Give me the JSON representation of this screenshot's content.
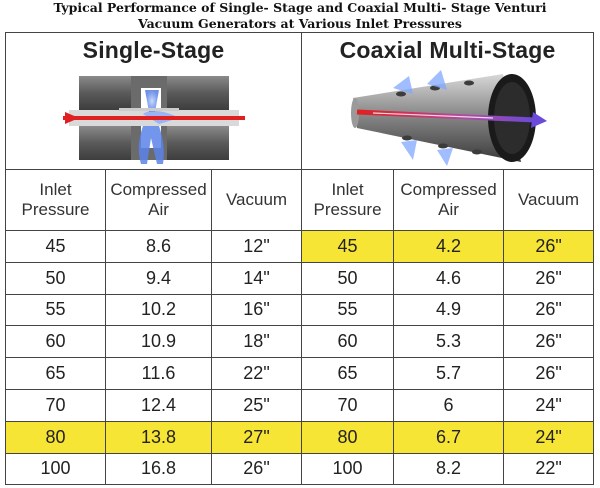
{
  "title": {
    "line1": "Typical Performance of Single- Stage and Coaxial Multi- Stage Venturi",
    "line2": "Vacuum Generators at Various Inlet Pressures"
  },
  "sections": {
    "single": {
      "title": "Single-Stage",
      "icon": "single-stage-venturi-diagram"
    },
    "coaxial": {
      "title": "Coaxial Multi-Stage",
      "icon": "coaxial-multistage-venturi-diagram"
    }
  },
  "columns": {
    "inlet_line1": "Inlet",
    "inlet_line2": "Pressure",
    "air_line1": "Compressed",
    "air_line2": "Air",
    "vacuum": "Vacuum"
  },
  "highlight_color": "#f7e535",
  "rows": [
    {
      "single": {
        "inlet": "45",
        "air": "8.6",
        "vacuum": "12\""
      },
      "coaxial": {
        "inlet": "45",
        "air": "4.2",
        "vacuum": "26\""
      },
      "single_highlight": false,
      "coaxial_highlight": true
    },
    {
      "single": {
        "inlet": "50",
        "air": "9.4",
        "vacuum": "14\""
      },
      "coaxial": {
        "inlet": "50",
        "air": "4.6",
        "vacuum": "26\""
      },
      "single_highlight": false,
      "coaxial_highlight": false
    },
    {
      "single": {
        "inlet": "55",
        "air": "10.2",
        "vacuum": "16\""
      },
      "coaxial": {
        "inlet": "55",
        "air": "4.9",
        "vacuum": "26\""
      },
      "single_highlight": false,
      "coaxial_highlight": false
    },
    {
      "single": {
        "inlet": "60",
        "air": "10.9",
        "vacuum": "18\""
      },
      "coaxial": {
        "inlet": "60",
        "air": "5.3",
        "vacuum": "26\""
      },
      "single_highlight": false,
      "coaxial_highlight": false
    },
    {
      "single": {
        "inlet": "65",
        "air": "11.6",
        "vacuum": "22\""
      },
      "coaxial": {
        "inlet": "65",
        "air": "5.7",
        "vacuum": "26\""
      },
      "single_highlight": false,
      "coaxial_highlight": false
    },
    {
      "single": {
        "inlet": "70",
        "air": "12.4",
        "vacuum": "25\""
      },
      "coaxial": {
        "inlet": "70",
        "air": "6",
        "vacuum": "24\""
      },
      "single_highlight": false,
      "coaxial_highlight": false
    },
    {
      "single": {
        "inlet": "80",
        "air": "13.8",
        "vacuum": "27\""
      },
      "coaxial": {
        "inlet": "80",
        "air": "6.7",
        "vacuum": "24\""
      },
      "single_highlight": true,
      "coaxial_highlight": true
    },
    {
      "single": {
        "inlet": "100",
        "air": "16.8",
        "vacuum": "26\""
      },
      "coaxial": {
        "inlet": "100",
        "air": "8.2",
        "vacuum": "22\""
      },
      "single_highlight": false,
      "coaxial_highlight": false
    }
  ]
}
